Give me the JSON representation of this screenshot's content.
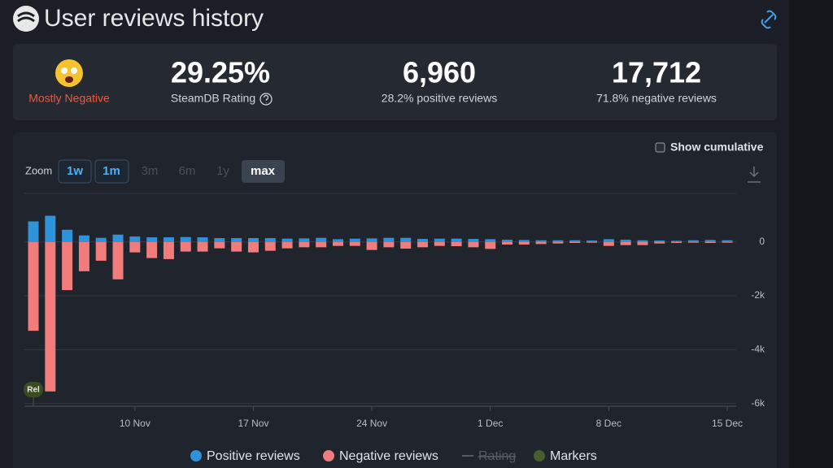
{
  "header": {
    "title": "User reviews history"
  },
  "summary": {
    "verdict": "Mostly Negative",
    "stats": [
      {
        "value": "29.25%",
        "label": "SteamDB Rating"
      },
      {
        "value": "6,960",
        "label": "28.2% positive reviews"
      },
      {
        "value": "17,712",
        "label": "71.8% negative reviews"
      }
    ]
  },
  "controls": {
    "cumulative": "Show cumulative",
    "zoom": "Zoom",
    "ranges": [
      "1w",
      "1m",
      "3m",
      "6m",
      "1y",
      "max"
    ]
  },
  "chart_data": {
    "type": "bar",
    "stacked": true,
    "categories": [
      null,
      null,
      null,
      null,
      null,
      null,
      "10 Nov",
      null,
      null,
      null,
      null,
      null,
      null,
      "17 Nov",
      null,
      null,
      null,
      null,
      null,
      null,
      "24 Nov",
      null,
      null,
      null,
      null,
      null,
      null,
      "1 Dec",
      null,
      null,
      null,
      null,
      null,
      null,
      "8 Dec",
      null,
      null,
      null,
      null,
      null,
      null,
      "15 Dec"
    ],
    "series": [
      {
        "name": "Positive reviews",
        "color": "#2f93d9",
        "values": [
          760,
          970,
          450,
          240,
          150,
          270,
          200,
          170,
          170,
          180,
          170,
          140,
          140,
          140,
          140,
          120,
          130,
          150,
          100,
          120,
          130,
          150,
          150,
          110,
          120,
          120,
          110,
          100,
          80,
          70,
          60,
          60,
          60,
          50,
          100,
          80,
          60,
          50,
          40,
          60,
          70,
          60
        ]
      },
      {
        "name": "Negative reviews",
        "color": "#f07c7c",
        "values": [
          -3300,
          -5550,
          -1790,
          -1090,
          -700,
          -1390,
          -390,
          -600,
          -640,
          -360,
          -360,
          -240,
          -360,
          -390,
          -330,
          -240,
          -200,
          -200,
          -150,
          -150,
          -300,
          -200,
          -250,
          -200,
          -150,
          -160,
          -200,
          -260,
          -100,
          -100,
          -80,
          -60,
          -40,
          -30,
          -150,
          -120,
          -120,
          -60,
          -40,
          -30,
          -40,
          -30
        ]
      }
    ],
    "legend_extra": [
      {
        "name": "Rating",
        "color": "#555b66"
      },
      {
        "name": "Markers",
        "color": "#4a5d2c"
      }
    ],
    "release_marker": "Rel",
    "ylim": [
      -6100,
      1800
    ],
    "yticks": [
      {
        "value": -6000,
        "label": "-6k"
      },
      {
        "value": -4000,
        "label": "-4k"
      },
      {
        "value": -2000,
        "label": "-2k"
      },
      0
    ],
    "grid": true
  }
}
